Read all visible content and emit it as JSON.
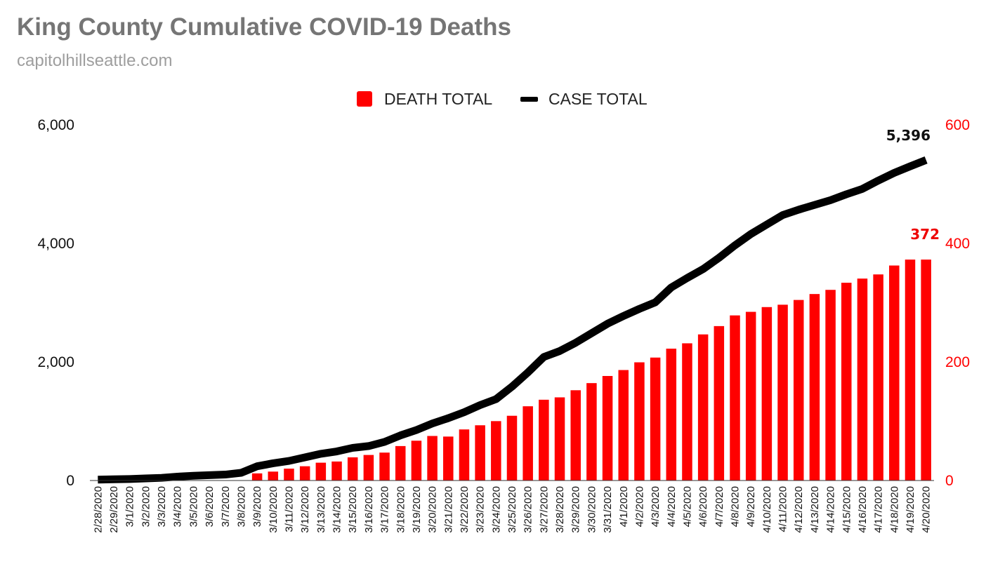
{
  "colors": {
    "death": "#ff0000",
    "case": "#000000",
    "title": "#757575",
    "subtitle": "#9e9e9e"
  },
  "chart_data": {
    "type": "bar",
    "title": "King County Cumulative COVID-19 Deaths",
    "subtitle": "capitolhillseattle.com",
    "legend": {
      "position": "top",
      "entries": [
        "DEATH TOTAL",
        "CASE TOTAL"
      ]
    },
    "categories": [
      "2/28/2020",
      "2/29/2020",
      "3/1/2020",
      "3/2/2020",
      "3/3/2020",
      "3/4/2020",
      "3/5/2020",
      "3/6/2020",
      "3/7/2020",
      "3/8/2020",
      "3/9/2020",
      "3/10/2020",
      "3/11/2020",
      "3/12/2020",
      "3/13/2020",
      "3/14/2020",
      "3/15/2020",
      "3/16/2020",
      "3/17/2020",
      "3/18/2020",
      "3/19/2020",
      "3/20/2020",
      "3/21/2020",
      "3/22/2020",
      "3/23/2020",
      "3/24/2020",
      "3/25/2020",
      "3/26/2020",
      "3/27/2020",
      "3/28/2020",
      "3/29/2020",
      "3/30/2020",
      "3/31/2020",
      "4/1/2020",
      "4/2/2020",
      "4/3/2020",
      "4/4/2020",
      "4/5/2020",
      "4/6/2020",
      "4/7/2020",
      "4/8/2020",
      "4/9/2020",
      "4/10/2020",
      "4/11/2020",
      "4/12/2020",
      "4/13/2020",
      "4/14/2020",
      "4/15/2020",
      "4/16/2020",
      "4/17/2020",
      "4/18/2020",
      "4/19/2020",
      "4/20/2020"
    ],
    "series": [
      {
        "name": "DEATH TOTAL",
        "type": "bar",
        "axis": "right",
        "values": [
          0,
          0,
          0,
          0,
          0,
          0,
          0,
          0,
          0,
          0,
          12,
          15,
          20,
          24,
          30,
          32,
          39,
          43,
          47,
          58,
          67,
          75,
          74,
          86,
          93,
          100,
          109,
          125,
          136,
          140,
          152,
          164,
          176,
          186,
          199,
          207,
          222,
          231,
          246,
          260,
          278,
          284,
          292,
          296,
          304,
          314,
          321,
          333,
          340,
          347,
          362,
          372,
          372
        ]
      },
      {
        "name": "CASE TOTAL",
        "type": "line",
        "axis": "left",
        "values": [
          15,
          20,
          25,
          35,
          45,
          65,
          80,
          90,
          100,
          130,
          240,
          290,
          330,
          390,
          450,
          490,
          550,
          580,
          650,
          760,
          850,
          960,
          1050,
          1150,
          1270,
          1370,
          1580,
          1820,
          2080,
          2180,
          2320,
          2480,
          2640,
          2770,
          2890,
          3000,
          3250,
          3410,
          3560,
          3750,
          3960,
          4150,
          4310,
          4470,
          4560,
          4640,
          4720,
          4820,
          4910,
          5050,
          5180,
          5290,
          5396
        ]
      }
    ],
    "annotations": {
      "case_last": "5,396",
      "death_last": "372"
    },
    "left_axis": {
      "ylim": [
        0,
        6000
      ],
      "ticks": [
        "0",
        "2,000",
        "4,000",
        "6,000"
      ]
    },
    "right_axis": {
      "ylim": [
        0,
        600
      ],
      "ticks": [
        "0",
        "200",
        "400",
        "600"
      ]
    },
    "grid": false
  }
}
